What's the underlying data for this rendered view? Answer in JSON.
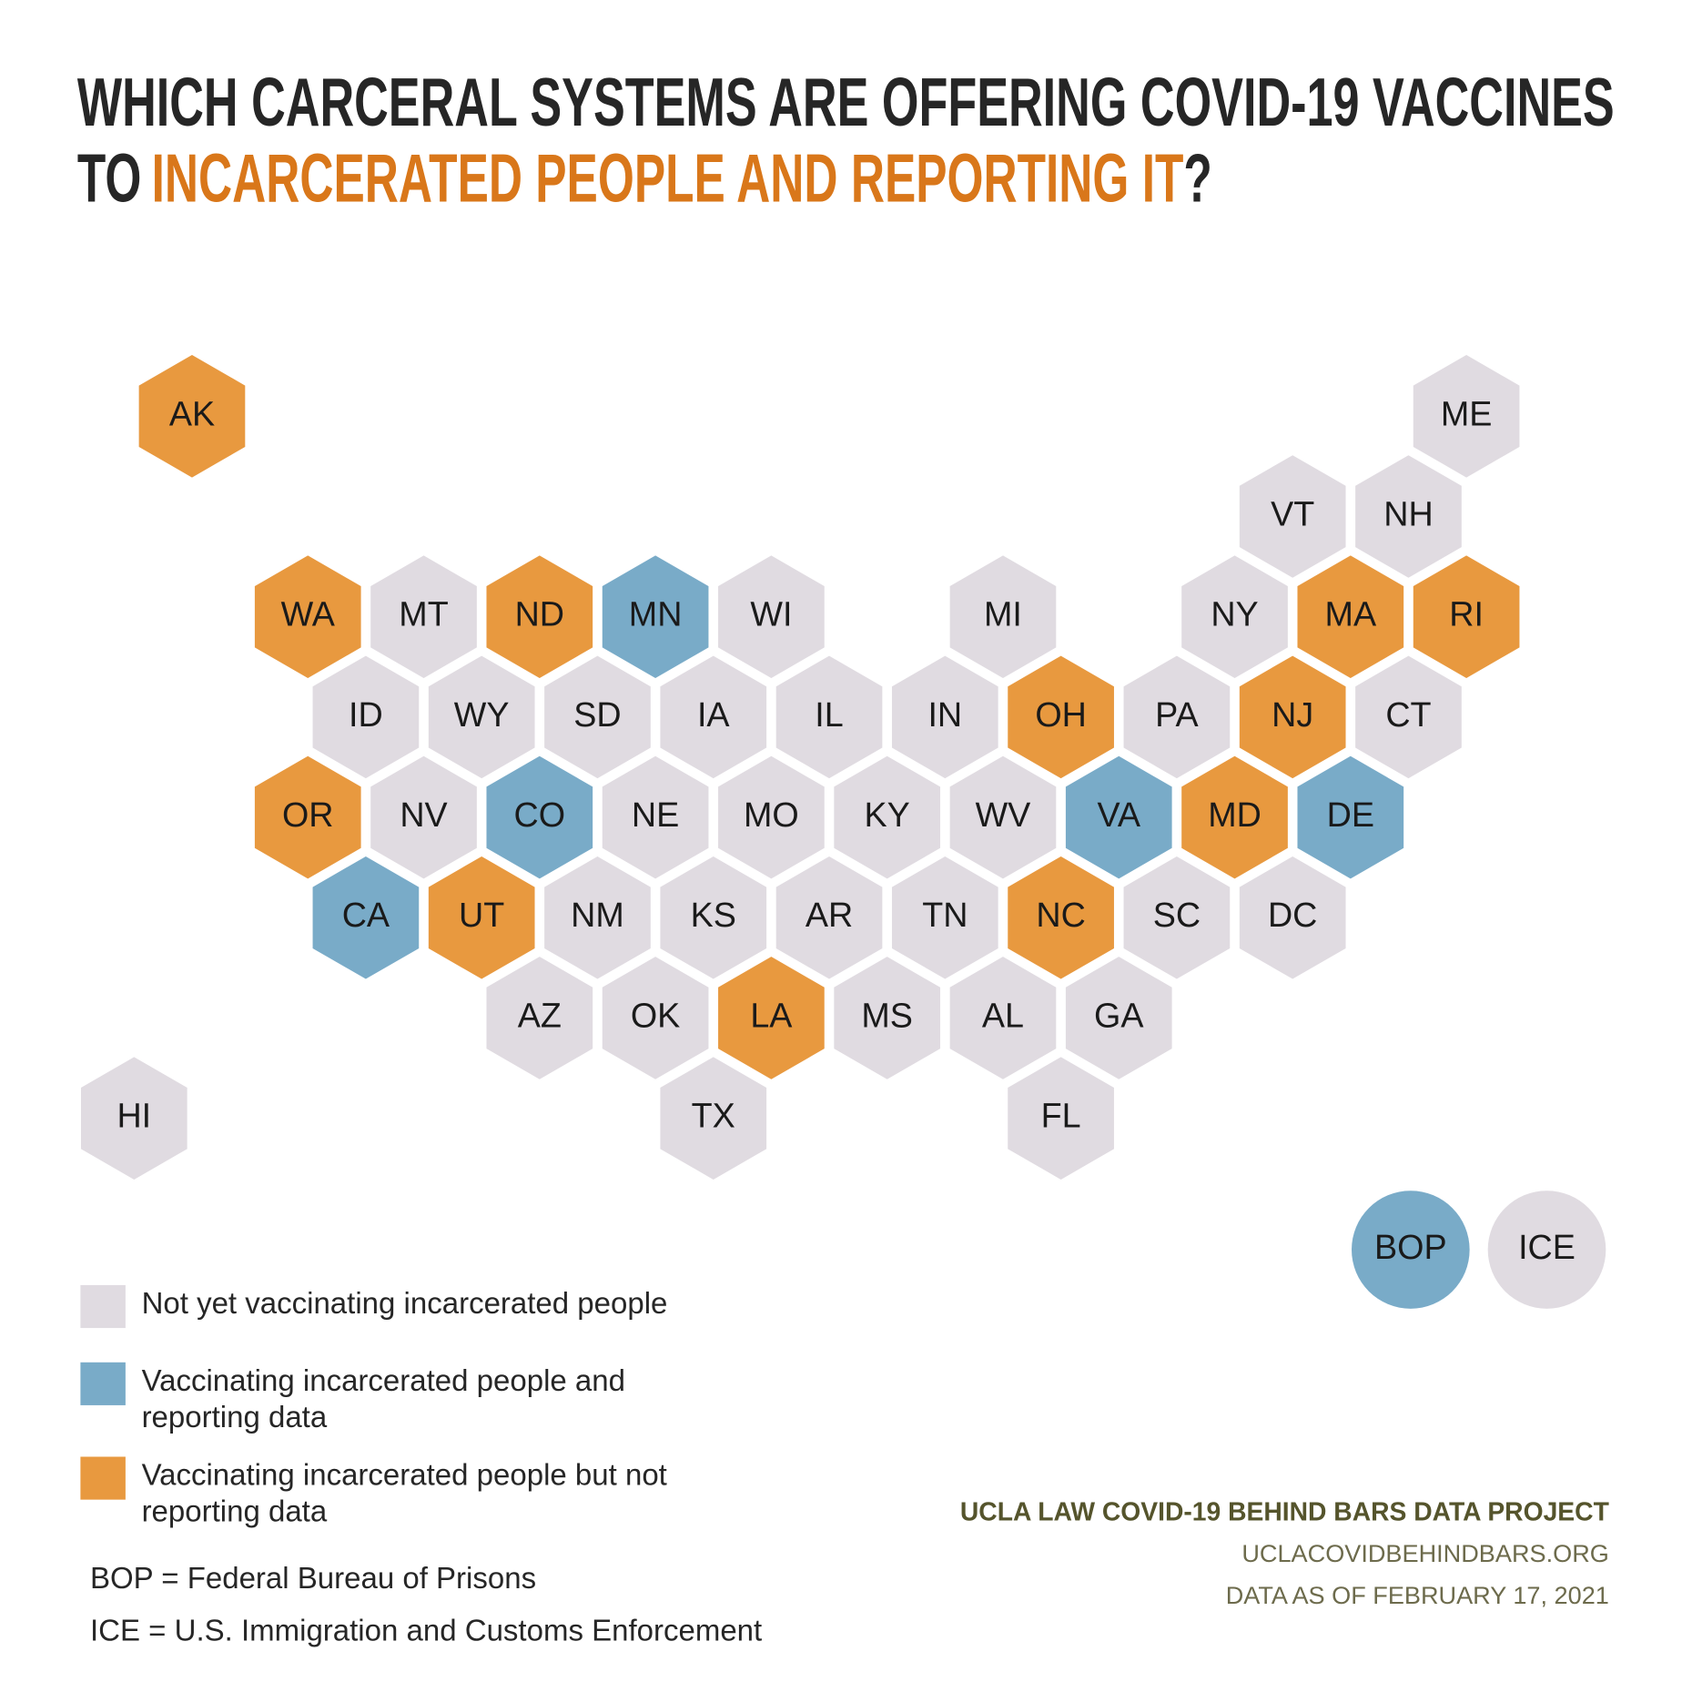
{
  "title": {
    "line1": "WHICH CARCERAL SYSTEMS ARE OFFERING COVID-19 VACCINES",
    "line2": [
      "TO",
      "INCARCERATED PEOPLE AND REPORTING IT",
      "?"
    ],
    "highlight_color": "#d9771a"
  },
  "hexes": [
    {
      "label": "AK",
      "color": "#e8993f"
    },
    {
      "label": "ME",
      "color": "#e0dbe1"
    },
    {
      "label": "VT",
      "color": "#e0dbe1"
    },
    {
      "label": "NH",
      "color": "#e0dbe1"
    },
    {
      "label": "WA",
      "color": "#e8993f"
    },
    {
      "label": "MT",
      "color": "#e0dbe1"
    },
    {
      "label": "ND",
      "color": "#e8993f"
    },
    {
      "label": "MN",
      "color": "#79abc8"
    },
    {
      "label": "WI",
      "color": "#e0dbe1"
    },
    {
      "label": "MI",
      "color": "#e0dbe1"
    },
    {
      "label": "NY",
      "color": "#e0dbe1"
    },
    {
      "label": "MA",
      "color": "#e8993f"
    },
    {
      "label": "RI",
      "color": "#e8993f"
    },
    {
      "label": "ID",
      "color": "#e0dbe1"
    },
    {
      "label": "WY",
      "color": "#e0dbe1"
    },
    {
      "label": "SD",
      "color": "#e0dbe1"
    },
    {
      "label": "IA",
      "color": "#e0dbe1"
    },
    {
      "label": "IL",
      "color": "#e0dbe1"
    },
    {
      "label": "IN",
      "color": "#e0dbe1"
    },
    {
      "label": "OH",
      "color": "#e8993f"
    },
    {
      "label": "PA",
      "color": "#e0dbe1"
    },
    {
      "label": "NJ",
      "color": "#e8993f"
    },
    {
      "label": "CT",
      "color": "#e0dbe1"
    },
    {
      "label": "OR",
      "color": "#e8993f"
    },
    {
      "label": "NV",
      "color": "#e0dbe1"
    },
    {
      "label": "CO",
      "color": "#79abc8"
    },
    {
      "label": "NE",
      "color": "#e0dbe1"
    },
    {
      "label": "MO",
      "color": "#e0dbe1"
    },
    {
      "label": "KY",
      "color": "#e0dbe1"
    },
    {
      "label": "WV",
      "color": "#e0dbe1"
    },
    {
      "label": "VA",
      "color": "#79abc8"
    },
    {
      "label": "MD",
      "color": "#e8993f"
    },
    {
      "label": "DE",
      "color": "#79abc8"
    },
    {
      "label": "CA",
      "color": "#79abc8"
    },
    {
      "label": "UT",
      "color": "#e8993f"
    },
    {
      "label": "NM",
      "color": "#e0dbe1"
    },
    {
      "label": "KS",
      "color": "#e0dbe1"
    },
    {
      "label": "AR",
      "color": "#e0dbe1"
    },
    {
      "label": "TN",
      "color": "#e0dbe1"
    },
    {
      "label": "NC",
      "color": "#e8993f"
    },
    {
      "label": "SC",
      "color": "#e0dbe1"
    },
    {
      "label": "DC",
      "color": "#e0dbe1"
    },
    {
      "label": "AZ",
      "color": "#e0dbe1"
    },
    {
      "label": "OK",
      "color": "#e0dbe1"
    },
    {
      "label": "LA",
      "color": "#e8993f"
    },
    {
      "label": "MS",
      "color": "#e0dbe1"
    },
    {
      "label": "AL",
      "color": "#e0dbe1"
    },
    {
      "label": "GA",
      "color": "#e0dbe1"
    },
    {
      "label": "HI",
      "color": "#e0dbe1"
    },
    {
      "label": "TX",
      "color": "#e0dbe1"
    },
    {
      "label": "FL",
      "color": "#e0dbe1"
    }
  ],
  "agencies": [
    {
      "label": "BOP",
      "color": "#79abc8"
    },
    {
      "label": "ICE",
      "color": "#e0dbe1"
    }
  ],
  "legend": [
    {
      "lines": [
        "Not yet vaccinating incarcerated people"
      ],
      "color": "#e0dbe1"
    },
    {
      "lines": [
        "Vaccinating incarcerated people and",
        "reporting data"
      ],
      "color": "#79abc8"
    },
    {
      "lines": [
        "Vaccinating incarcerated people but not",
        "reporting data"
      ],
      "color": "#e8993f"
    }
  ],
  "notes": [
    "BOP = Federal Bureau of Prisons",
    "ICE = U.S. Immigration and Customs Enforcement"
  ],
  "footer": {
    "source": "UCLA LAW COVID-19 BEHIND BARS DATA PROJECT",
    "url": "UCLACOVIDBEHINDBARS.ORG",
    "date": "DATA AS OF FEBRUARY 17, 2021"
  }
}
